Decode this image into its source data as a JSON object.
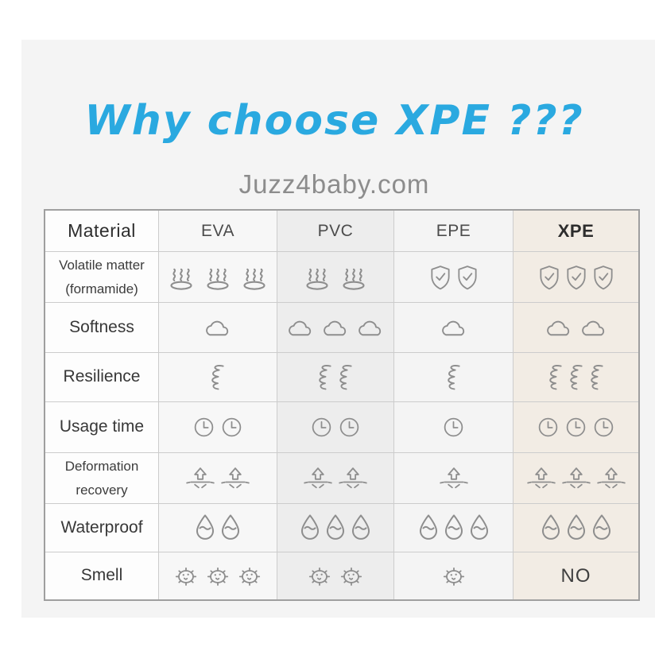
{
  "page": {
    "title": "Why choose XPE ???",
    "subtitle": "Juzz4baby.com"
  },
  "colors": {
    "title_blue": "#2aa9e0",
    "subtitle_gray": "#8c8c8c",
    "icon_gray": "#8e8e8e",
    "panel_bg": "#f4f4f4",
    "xpe_column_bg": "#f2ece4",
    "pvc_column_bg": "#ededed"
  },
  "table": {
    "columns": [
      {
        "label": "Material"
      },
      {
        "label": "EVA"
      },
      {
        "label": "PVC"
      },
      {
        "label": "EPE"
      },
      {
        "label": "XPE"
      }
    ],
    "rows": [
      {
        "name": "volatile-matter",
        "label_lines": [
          "Volatile matter",
          "(formamide)"
        ],
        "cells": [
          {
            "icon": "steam-icon",
            "count": 3
          },
          {
            "icon": "steam-icon",
            "count": 2
          },
          {
            "icon": "shield-check-icon",
            "count": 2
          },
          {
            "icon": "shield-check-icon",
            "count": 3
          }
        ]
      },
      {
        "name": "softness",
        "label_lines": [
          "Softness"
        ],
        "cells": [
          {
            "icon": "cloud-icon",
            "count": 1
          },
          {
            "icon": "cloud-icon",
            "count": 3
          },
          {
            "icon": "cloud-icon",
            "count": 1
          },
          {
            "icon": "cloud-icon",
            "count": 2
          }
        ]
      },
      {
        "name": "resilience",
        "label_lines": [
          "Resilience"
        ],
        "cells": [
          {
            "icon": "spring-icon",
            "count": 1
          },
          {
            "icon": "spring-icon",
            "count": 2
          },
          {
            "icon": "spring-icon",
            "count": 1
          },
          {
            "icon": "spring-icon",
            "count": 3
          }
        ]
      },
      {
        "name": "usage-time",
        "label_lines": [
          "Usage time"
        ],
        "cells": [
          {
            "icon": "clock-icon",
            "count": 2
          },
          {
            "icon": "clock-icon",
            "count": 2
          },
          {
            "icon": "clock-icon",
            "count": 1
          },
          {
            "icon": "clock-icon",
            "count": 3
          }
        ]
      },
      {
        "name": "deformation-recovery",
        "label_lines": [
          "Deformation",
          "recovery"
        ],
        "cells": [
          {
            "icon": "rebound-arrow-icon",
            "count": 2
          },
          {
            "icon": "rebound-arrow-icon",
            "count": 2
          },
          {
            "icon": "rebound-arrow-icon",
            "count": 1
          },
          {
            "icon": "rebound-arrow-icon",
            "count": 3
          }
        ]
      },
      {
        "name": "waterproof",
        "label_lines": [
          "Waterproof"
        ],
        "cells": [
          {
            "icon": "water-drop-icon",
            "count": 2
          },
          {
            "icon": "water-drop-icon",
            "count": 3
          },
          {
            "icon": "water-drop-icon",
            "count": 3
          },
          {
            "icon": "water-drop-icon",
            "count": 3
          }
        ]
      },
      {
        "name": "smell",
        "label_lines": [
          "Smell"
        ],
        "cells": [
          {
            "icon": "germ-icon",
            "count": 3
          },
          {
            "icon": "germ-icon",
            "count": 2
          },
          {
            "icon": "germ-icon",
            "count": 1
          },
          {
            "text": "NO"
          }
        ]
      }
    ]
  },
  "chart_data": {
    "type": "table",
    "title": "Why choose XPE ???",
    "subtitle": "Juzz4baby.com",
    "columns": [
      "Material",
      "EVA",
      "PVC",
      "EPE",
      "XPE"
    ],
    "legend": "icon count = rating level; steam/germ icons = bad trait amount, shield/cloud/spring/clock/arrow/drop icons = good trait amount",
    "rows": [
      {
        "property": "Volatile matter (formamide)",
        "EVA": "3 (steam)",
        "PVC": "2 (steam)",
        "EPE": "2 (shield-check)",
        "XPE": "3 (shield-check)"
      },
      {
        "property": "Softness",
        "EVA": 1,
        "PVC": 3,
        "EPE": 1,
        "XPE": 2
      },
      {
        "property": "Resilience",
        "EVA": 1,
        "PVC": 2,
        "EPE": 1,
        "XPE": 3
      },
      {
        "property": "Usage time",
        "EVA": 2,
        "PVC": 2,
        "EPE": 1,
        "XPE": 3
      },
      {
        "property": "Deformation recovery",
        "EVA": 2,
        "PVC": 2,
        "EPE": 1,
        "XPE": 3
      },
      {
        "property": "Waterproof",
        "EVA": 2,
        "PVC": 3,
        "EPE": 3,
        "XPE": 3
      },
      {
        "property": "Smell",
        "EVA": "3 (germ)",
        "PVC": "2 (germ)",
        "EPE": "1 (germ)",
        "XPE": "NO"
      }
    ]
  }
}
